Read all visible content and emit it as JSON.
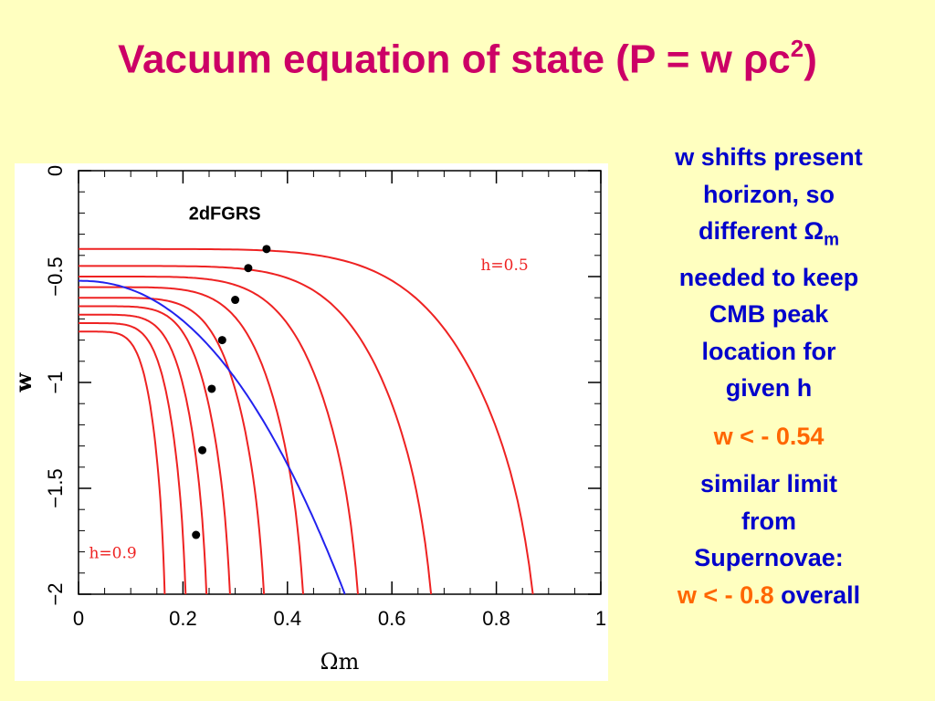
{
  "slide": {
    "title": "Vacuum equation of state (P =  w ρc",
    "title_sup": "2",
    "title_close": ")"
  },
  "panel": {
    "line1": "w shifts present",
    "line2": "horizon, so",
    "line3_a": "different ",
    "line3_omega": "Ω",
    "line3_sub": "m",
    "line4": "needed to keep",
    "line5": "CMB peak",
    "line6": "location for",
    "line7": "given h",
    "limit": "w < - 0.54",
    "line8": "similar limit",
    "line9": "from",
    "line10": "Supernovae:",
    "final_a": "w < - 0.8",
    "final_b": " overall"
  },
  "colors": {
    "title": "#cc0066",
    "panel_text": "#0000cc",
    "highlight": "#ff6600",
    "curve": "#ee2222",
    "blue_curve": "#2222ee"
  },
  "chart_data": {
    "type": "line",
    "xlabel": "Ωm",
    "ylabel": "w",
    "xlim": [
      0,
      1
    ],
    "ylim": [
      -2,
      0
    ],
    "xticks": [
      0,
      0.2,
      0.4,
      0.6,
      0.8,
      1
    ],
    "xtick_labels": [
      "0",
      "0.2",
      "0.4",
      "0.6",
      "0.8",
      "1"
    ],
    "yticks": [
      0,
      -0.5,
      -1,
      -1.5,
      -2
    ],
    "ytick_labels": [
      "0",
      "−0.5",
      "−1",
      "−1.5",
      "−2"
    ],
    "grid": false,
    "annotations": [
      {
        "text": "2dFGRS",
        "x": 0.28,
        "y": -0.23
      },
      {
        "text": "h=0.5",
        "x": 0.77,
        "y": -0.47
      },
      {
        "text": "h=0.9",
        "x": 0.02,
        "y": -1.83
      }
    ],
    "series": [
      {
        "color": "red",
        "w0": -0.37,
        "x_end": 0.87
      },
      {
        "color": "red",
        "w0": -0.45,
        "x_end": 0.675
      },
      {
        "color": "red",
        "w0": -0.5,
        "x_end": 0.535
      },
      {
        "color": "red",
        "w0": -0.55,
        "x_end": 0.43
      },
      {
        "color": "red",
        "w0": -0.6,
        "x_end": 0.355
      },
      {
        "color": "red",
        "w0": -0.64,
        "x_end": 0.29
      },
      {
        "color": "red",
        "w0": -0.68,
        "x_end": 0.245
      },
      {
        "color": "red",
        "w0": -0.72,
        "x_end": 0.205
      },
      {
        "color": "red",
        "w0": -0.76,
        "x_end": 0.165
      },
      {
        "color": "blue",
        "w0": -0.52,
        "x_end": 0.51
      }
    ],
    "points": [
      {
        "x": 0.36,
        "y": -0.37
      },
      {
        "x": 0.325,
        "y": -0.46
      },
      {
        "x": 0.3,
        "y": -0.61
      },
      {
        "x": 0.275,
        "y": -0.8
      },
      {
        "x": 0.255,
        "y": -1.03
      },
      {
        "x": 0.237,
        "y": -1.32
      },
      {
        "x": 0.225,
        "y": -1.72
      }
    ]
  }
}
